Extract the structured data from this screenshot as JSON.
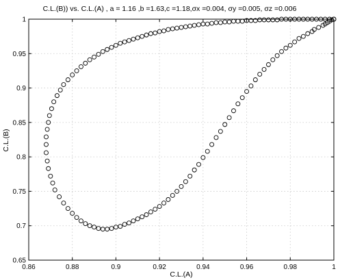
{
  "chart_data": {
    "type": "scatter",
    "title": "C.L.(B)) vs. C.L.(A) , a = 1.16 ,b =1.63,c =1.18,σx =0.004, σy =0.005, σz =0.006",
    "xlabel": "C.L.(A)",
    "ylabel": "C.L.(B)",
    "xlim": [
      0.86,
      1.0
    ],
    "ylim": [
      0.65,
      1.0
    ],
    "xticks": [
      0.86,
      0.88,
      0.9,
      0.92,
      0.94,
      0.96,
      0.98,
      1.0
    ],
    "xtick_labels": [
      "0.86",
      "0.88",
      "0.9",
      "0.92",
      "0.94",
      "0.96",
      "0.98",
      "1"
    ],
    "yticks": [
      0.65,
      0.7,
      0.75,
      0.8,
      0.85,
      0.9,
      0.95,
      1.0
    ],
    "ytick_labels": [
      "0.65",
      "0.7",
      "0.75",
      "0.8",
      "0.85",
      "0.9",
      "0.95",
      "1"
    ],
    "grid": true,
    "marker": "open-circle",
    "series": [
      {
        "x": [
          1.0,
          0.999,
          0.998,
          0.997,
          0.996,
          0.995,
          0.993,
          0.991,
          0.99,
          0.988,
          0.986,
          0.984,
          0.982,
          0.98,
          0.978,
          0.976,
          0.974,
          0.972,
          0.97,
          0.968,
          0.966,
          0.964,
          0.962,
          0.96,
          0.958,
          0.956,
          0.954,
          0.952,
          0.95,
          0.948,
          0.946,
          0.944,
          0.942,
          0.94,
          0.938,
          0.936,
          0.934,
          0.932,
          0.93,
          0.928,
          0.926,
          0.924,
          0.922,
          0.92,
          0.918,
          0.916,
          0.914,
          0.912,
          0.91,
          0.908,
          0.906,
          0.904,
          0.902,
          0.9,
          0.898,
          0.896,
          0.894,
          0.892,
          0.89,
          0.888,
          0.886,
          0.884,
          0.882,
          0.88,
          0.878,
          0.876,
          0.874,
          0.872,
          0.871,
          0.87,
          0.869,
          0.8685,
          0.868,
          0.868,
          0.868,
          0.8685,
          0.869,
          0.8695,
          0.8705,
          0.8715,
          0.873,
          0.8745,
          0.876,
          0.878,
          0.88,
          0.882,
          0.884,
          0.886,
          0.888,
          0.89,
          0.892,
          0.894,
          0.896,
          0.898,
          0.9,
          0.902,
          0.904,
          0.906,
          0.908,
          0.91,
          0.912,
          0.914,
          0.916,
          0.918,
          0.92,
          0.922,
          0.924,
          0.926,
          0.928,
          0.93,
          0.932,
          0.934,
          0.936,
          0.938,
          0.94,
          0.942,
          0.944,
          0.946,
          0.948,
          0.95,
          0.952,
          0.954,
          0.956,
          0.958,
          0.96,
          0.962,
          0.964,
          0.966,
          0.968,
          0.97,
          0.972,
          0.974,
          0.976,
          0.978,
          0.98,
          0.982,
          0.984,
          0.986,
          0.988,
          0.99,
          0.992,
          0.994,
          0.996,
          0.998,
          1.0
        ],
        "y": [
          1.0,
          0.999,
          0.997,
          0.995,
          0.993,
          0.991,
          0.988,
          0.985,
          0.982,
          0.979,
          0.975,
          0.972,
          0.967,
          0.962,
          0.958,
          0.953,
          0.947,
          0.941,
          0.934,
          0.927,
          0.92,
          0.912,
          0.903,
          0.895,
          0.886,
          0.877,
          0.867,
          0.857,
          0.847,
          0.837,
          0.828,
          0.818,
          0.808,
          0.799,
          0.789,
          0.781,
          0.772,
          0.764,
          0.757,
          0.75,
          0.744,
          0.738,
          0.733,
          0.728,
          0.724,
          0.72,
          0.716,
          0.713,
          0.71,
          0.707,
          0.704,
          0.702,
          0.699,
          0.698,
          0.696,
          0.695,
          0.695,
          0.696,
          0.698,
          0.7,
          0.703,
          0.707,
          0.712,
          0.718,
          0.725,
          0.733,
          0.742,
          0.752,
          0.762,
          0.772,
          0.783,
          0.794,
          0.806,
          0.818,
          0.829,
          0.84,
          0.85,
          0.86,
          0.87,
          0.88,
          0.889,
          0.897,
          0.905,
          0.912,
          0.919,
          0.925,
          0.931,
          0.936,
          0.941,
          0.945,
          0.949,
          0.953,
          0.956,
          0.959,
          0.962,
          0.965,
          0.967,
          0.969,
          0.971,
          0.973,
          0.975,
          0.977,
          0.979,
          0.98,
          0.982,
          0.983,
          0.985,
          0.986,
          0.987,
          0.988,
          0.989,
          0.99,
          0.991,
          0.992,
          0.993,
          0.993,
          0.994,
          0.995,
          0.995,
          0.996,
          0.996,
          0.997,
          0.997,
          0.997,
          0.998,
          0.998,
          0.998,
          0.999,
          0.999,
          0.999,
          0.999,
          0.999,
          1.0,
          1.0,
          1.0,
          1.0,
          1.0,
          1.0,
          1.0,
          1.0,
          1.0,
          1.0,
          1.0,
          1.0,
          1.0
        ]
      }
    ]
  }
}
